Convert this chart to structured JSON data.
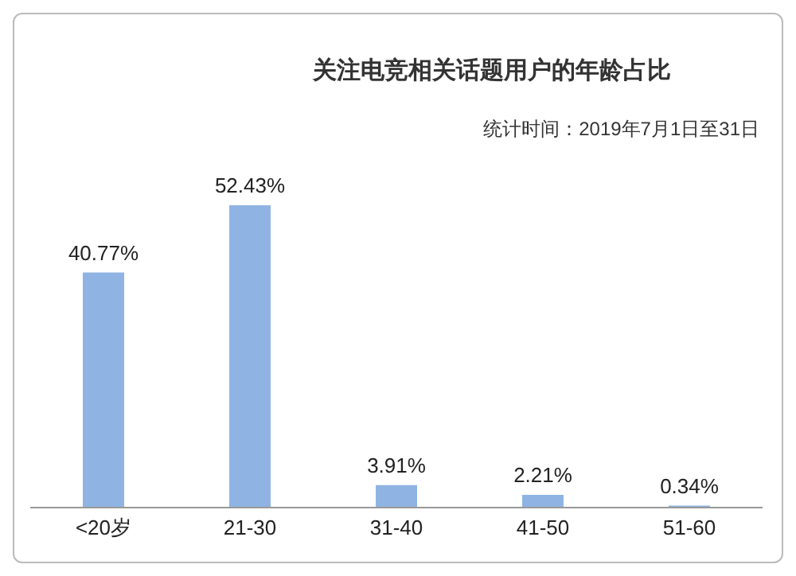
{
  "chart_data": {
    "type": "bar",
    "title": "关注电竞相关话题用户的年龄占比",
    "subtitle": "统计时间：2019年7月1日至31日",
    "categories": [
      "<20岁",
      "21-30",
      "31-40",
      "41-50",
      "51-60"
    ],
    "values": [
      40.77,
      52.43,
      3.91,
      2.21,
      0.34
    ],
    "value_labels": [
      "40.77%",
      "52.43%",
      "3.91%",
      "2.21%",
      "0.34%"
    ],
    "color": "#8fb4e3",
    "grid": false,
    "legend": false
  }
}
